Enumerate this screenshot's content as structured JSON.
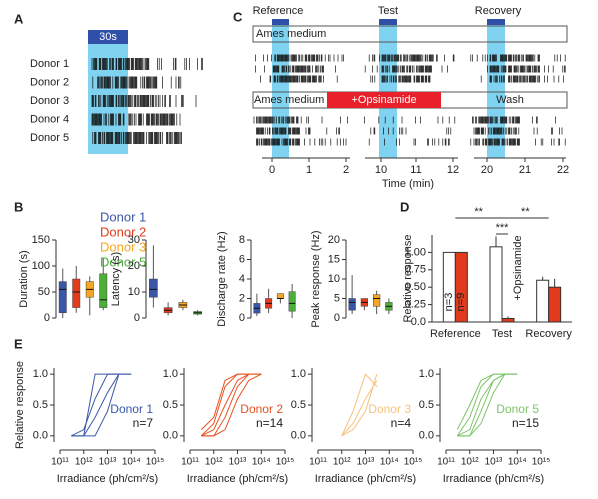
{
  "panel_labels": [
    "A",
    "B",
    "C",
    "D",
    "E"
  ],
  "panel_a": {
    "stimulus": "30s",
    "donors": [
      "Donor 1",
      "Donor 2",
      "Donor 3",
      "Donor 4",
      "Donor 5"
    ]
  },
  "panel_c": {
    "epochs": [
      "Reference",
      "Test",
      "Recovery"
    ],
    "condition_top": "Ames medium",
    "conditions_bottom": [
      "Ames medium",
      "+Opsinamide",
      "Wash"
    ],
    "time_ticks": [
      0,
      1,
      2,
      10,
      11,
      12,
      20,
      21,
      22
    ],
    "xlabel": "Time (min)"
  },
  "chart_data": [
    {
      "type": "box",
      "ylabel": "Duration (s)",
      "ylim": [
        0,
        150
      ],
      "yticks": [
        0,
        50,
        100,
        150
      ],
      "series": [
        {
          "name": "Donor 1",
          "color": "#3a56a8",
          "stats": [
            0,
            10,
            55,
            70,
            95
          ]
        },
        {
          "name": "Donor 2",
          "color": "#e23a1c",
          "stats": [
            10,
            20,
            50,
            75,
            100
          ]
        },
        {
          "name": "Donor 3",
          "color": "#f5a623",
          "stats": [
            5,
            40,
            55,
            70,
            80
          ]
        },
        {
          "name": "Donor 5",
          "color": "#4caf3a",
          "stats": [
            15,
            20,
            35,
            85,
            115
          ]
        }
      ]
    },
    {
      "type": "box",
      "ylabel": "Latency (s)",
      "ylim": [
        0,
        30
      ],
      "yticks": [
        0,
        10,
        20,
        30
      ],
      "series": [
        {
          "color": "#3a56a8",
          "stats": [
            4,
            8,
            11,
            15,
            28
          ]
        },
        {
          "color": "#e23a1c",
          "stats": [
            1,
            2,
            3,
            4,
            6
          ]
        },
        {
          "color": "#f5a623",
          "stats": [
            3,
            4,
            5,
            6,
            7
          ]
        },
        {
          "color": "#4caf3a",
          "stats": [
            1,
            1.5,
            2,
            2.5,
            3
          ]
        }
      ]
    },
    {
      "type": "box",
      "ylabel": "Discharge rate (Hz)",
      "ylim": [
        0,
        8
      ],
      "yticks": [
        0,
        2,
        4,
        6,
        8
      ],
      "series": [
        {
          "color": "#3a56a8",
          "stats": [
            0.2,
            0.5,
            1,
            1.5,
            2.5
          ]
        },
        {
          "color": "#e23a1c",
          "stats": [
            0.5,
            1,
            1.5,
            2,
            3
          ]
        },
        {
          "color": "#f5a623",
          "stats": [
            1.5,
            2,
            2,
            2.5,
            2.5
          ]
        },
        {
          "color": "#4caf3a",
          "stats": [
            0,
            0.7,
            1.5,
            2.7,
            3.5
          ]
        }
      ]
    },
    {
      "type": "box",
      "ylabel": "Peak response (Hz)",
      "ylim": [
        0,
        20
      ],
      "yticks": [
        0,
        5,
        10,
        15,
        20
      ],
      "series": [
        {
          "color": "#3a56a8",
          "stats": [
            1,
            2,
            4,
            5,
            11
          ]
        },
        {
          "color": "#e23a1c",
          "stats": [
            2,
            3,
            4,
            5,
            5
          ]
        },
        {
          "color": "#f5a623",
          "stats": [
            1,
            3,
            5,
            6,
            7
          ]
        },
        {
          "color": "#4caf3a",
          "stats": [
            1,
            2,
            3,
            4,
            5
          ]
        }
      ]
    },
    {
      "type": "bar",
      "ylabel": "Relative response",
      "categories": [
        "Reference",
        "Test",
        "Recovery"
      ],
      "series": [
        {
          "name": "n=3",
          "color": "#ffffff",
          "values": [
            1,
            1.08,
            0.6
          ],
          "errors": [
            0,
            0.15,
            0.05
          ]
        },
        {
          "name": "n=9",
          "color": "#e23a1c",
          "values": [
            1,
            0.05,
            0.5
          ],
          "errors": [
            0,
            0.03,
            0.12
          ]
        }
      ],
      "ylim": [
        0,
        1.25
      ],
      "yticks": [
        {
          "value": 0,
          "label": "0.0"
        },
        {
          "value": 0.25,
          "label": "0.25"
        },
        {
          "value": 0.5,
          "label": "0.50"
        },
        {
          "value": 0.75,
          "label": "0.75"
        },
        {
          "value": 1,
          "label": "1.00"
        }
      ],
      "annotation": "+Opsinamide",
      "significance": [
        "**",
        "***",
        "**"
      ]
    },
    {
      "type": "line",
      "log_x": true,
      "color": "#3a56a8",
      "annotation": "Donor 1",
      "n_label": "n=7",
      "ylabel": "Relative response",
      "xlabel": "Irradiance (ph/cm²/s)",
      "x": [
        300000000000,
        1000000000000,
        3000000000000,
        10000000000000,
        30000000000000,
        100000000000000
      ],
      "xlim": [
        100000000000,
        1000000000000000
      ],
      "xticks": [
        {
          "value": 100000000000,
          "label": "10¹¹"
        },
        {
          "value": 1000000000000,
          "label": "10¹²"
        },
        {
          "value": 10000000000000,
          "label": "10¹³"
        },
        {
          "value": 100000000000000,
          "label": "10¹⁴"
        },
        {
          "value": 1000000000000000,
          "label": "10¹⁵"
        }
      ],
      "ylim": [
        -0.1,
        1.1
      ],
      "yticks": [
        {
          "value": 0,
          "label": "0.0"
        },
        {
          "value": 0.5,
          "label": "0.5"
        },
        {
          "value": 1,
          "label": "1.0"
        }
      ],
      "series": [
        {
          "values": [
            0,
            0,
            1,
            1,
            1,
            null
          ]
        },
        {
          "values": [
            0,
            0.1,
            0.6,
            1,
            1,
            null
          ]
        },
        {
          "values": [
            0,
            0,
            0.3,
            0.7,
            1,
            1
          ]
        },
        {
          "values": [
            null,
            0,
            0,
            0.4,
            1,
            1
          ]
        }
      ]
    },
    {
      "type": "line",
      "log_x": true,
      "color": "#e8501e",
      "annotation": "Donor 2",
      "n_label": "n=14",
      "xlabel": "Irradiance (ph/cm²/s)",
      "x": [
        300000000000,
        1000000000000,
        3000000000000,
        10000000000000,
        30000000000000,
        100000000000000
      ],
      "xlim": [
        100000000000,
        1000000000000000
      ],
      "xticks": [
        {
          "value": 100000000000,
          "label": "10¹¹"
        },
        {
          "value": 1000000000000,
          "label": "10¹²"
        },
        {
          "value": 10000000000000,
          "label": "10¹³"
        },
        {
          "value": 100000000000000,
          "label": "10¹⁴"
        },
        {
          "value": 1000000000000000,
          "label": "10¹⁵"
        }
      ],
      "ylim": [
        -0.1,
        1.1
      ],
      "yticks": [
        {
          "value": 0,
          "label": "0.0"
        },
        {
          "value": 0.5,
          "label": "0.5"
        },
        {
          "value": 1,
          "label": "1.0"
        }
      ],
      "series": [
        {
          "values": [
            0,
            0.2,
            0.8,
            1,
            1,
            null
          ]
        },
        {
          "values": [
            0,
            0.1,
            0.5,
            0.9,
            1,
            1
          ]
        },
        {
          "values": [
            0,
            0,
            0.3,
            0.8,
            1,
            1
          ]
        },
        {
          "values": [
            0.1,
            0.3,
            0.9,
            1,
            1,
            null
          ]
        },
        {
          "values": [
            0,
            0,
            0.1,
            0.6,
            0.9,
            1
          ]
        }
      ]
    },
    {
      "type": "line",
      "log_x": true,
      "color": "#f6c27a",
      "annotation": "Donor 3",
      "n_label": "n=4",
      "xlabel": "Irradiance (ph/cm²/s)",
      "x": [
        300000000000,
        1000000000000,
        3000000000000,
        10000000000000,
        30000000000000,
        100000000000000
      ],
      "xlim": [
        100000000000,
        1000000000000000
      ],
      "xticks": [
        {
          "value": 100000000000,
          "label": "10¹¹"
        },
        {
          "value": 1000000000000,
          "label": "10¹²"
        },
        {
          "value": 10000000000000,
          "label": "10¹³"
        },
        {
          "value": 100000000000000,
          "label": "10¹⁴"
        },
        {
          "value": 1000000000000000,
          "label": "10¹⁵"
        }
      ],
      "ylim": [
        -0.1,
        1.1
      ],
      "yticks": [
        {
          "value": 0,
          "label": "0.0"
        },
        {
          "value": 0.5,
          "label": "0.5"
        },
        {
          "value": 1,
          "label": "1.0"
        }
      ],
      "series": [
        {
          "values": [
            null,
            0,
            0.4,
            1,
            0.8,
            null
          ]
        },
        {
          "values": [
            null,
            0,
            0.2,
            0.6,
            0.9,
            null
          ]
        },
        {
          "values": [
            null,
            0,
            0.1,
            0.4,
            1,
            null
          ]
        }
      ]
    },
    {
      "type": "line",
      "log_x": true,
      "color": "#7cc46a",
      "annotation": "Donor 5",
      "n_label": "n=15",
      "xlabel": "Irradiance (ph/cm²/s)",
      "x": [
        300000000000,
        1000000000000,
        3000000000000,
        10000000000000,
        30000000000000,
        100000000000000
      ],
      "xlim": [
        100000000000,
        1000000000000000
      ],
      "xticks": [
        {
          "value": 100000000000,
          "label": "10¹¹"
        },
        {
          "value": 1000000000000,
          "label": "10¹²"
        },
        {
          "value": 10000000000000,
          "label": "10¹³"
        },
        {
          "value": 100000000000000,
          "label": "10¹⁴"
        },
        {
          "value": 1000000000000000,
          "label": "10¹⁵"
        }
      ],
      "ylim": [
        -0.1,
        1.1
      ],
      "yticks": [
        {
          "value": 0,
          "label": "0.0"
        },
        {
          "value": 0.5,
          "label": "0.5"
        },
        {
          "value": 1,
          "label": "1.0"
        }
      ],
      "series": [
        {
          "values": [
            0,
            0.3,
            0.8,
            1,
            1,
            null
          ]
        },
        {
          "values": [
            0,
            0.1,
            0.6,
            0.9,
            1,
            1
          ]
        },
        {
          "values": [
            0,
            0,
            0.4,
            0.9,
            1,
            1
          ]
        },
        {
          "values": [
            0.1,
            0.5,
            0.9,
            1,
            1,
            null
          ]
        },
        {
          "values": [
            0,
            0,
            0.2,
            0.7,
            1,
            1
          ]
        }
      ]
    }
  ]
}
